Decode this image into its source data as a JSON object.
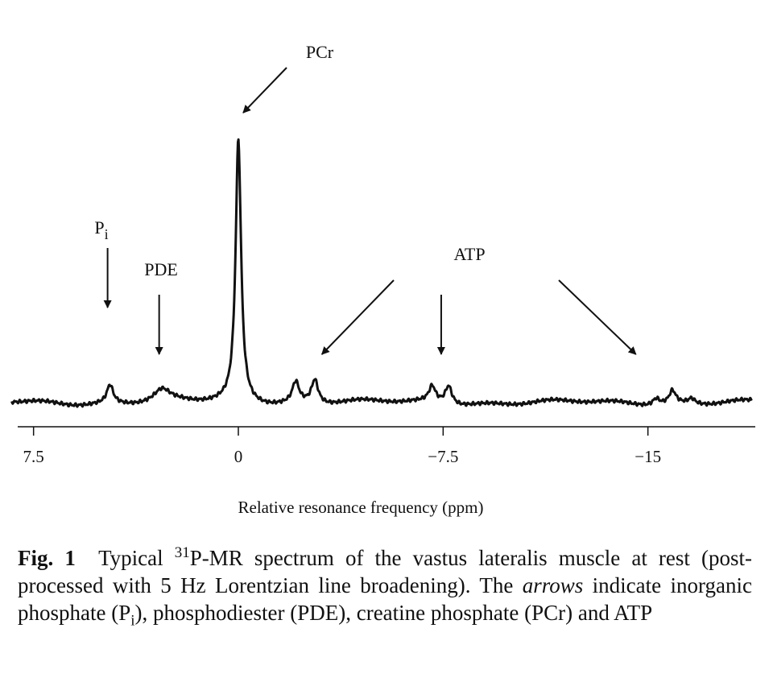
{
  "chart_data": {
    "type": "line",
    "xlabel": "Relative resonance frequency (ppm)",
    "x_axis_reversed": true,
    "xlim": [
      8.3,
      -18.8
    ],
    "ticks": [
      {
        "value": 7.5,
        "label": "7.5"
      },
      {
        "value": 0,
        "label": "0"
      },
      {
        "value": -7.5,
        "label": "−7.5"
      },
      {
        "value": -15,
        "label": "−15"
      }
    ],
    "grid": false,
    "peaks": [
      {
        "name": "Pi",
        "ppm": 4.7,
        "relative_height": 0.07
      },
      {
        "name": "PDE",
        "ppm": 2.8,
        "relative_height": 0.045
      },
      {
        "name": "PCr",
        "ppm": 0.0,
        "relative_height": 1.0
      },
      {
        "name": "ATP",
        "ppm": -2.1,
        "relative_height": 0.08
      },
      {
        "name": "ATP",
        "ppm": -2.8,
        "relative_height": 0.09
      },
      {
        "name": "ATP",
        "ppm": -7.1,
        "relative_height": 0.06
      },
      {
        "name": "ATP",
        "ppm": -7.7,
        "relative_height": 0.07
      },
      {
        "name": "ATP",
        "ppm": -15.3,
        "relative_height": 0.025
      },
      {
        "name": "ATP",
        "ppm": -15.9,
        "relative_height": 0.05
      },
      {
        "name": "ATP",
        "ppm": -16.6,
        "relative_height": 0.02
      }
    ],
    "annotations": [
      {
        "label": "PCr",
        "points_to_ppm": 0.0
      },
      {
        "label": "P",
        "subscript": "i",
        "points_to_ppm": 4.7
      },
      {
        "label": "PDE",
        "points_to_ppm": 2.9
      },
      {
        "label": "ATP",
        "points_to_ppm": [
          -3.0,
          -7.4,
          -14.5
        ]
      }
    ]
  },
  "caption": {
    "fig_label": "Fig. 1",
    "part1": "Typical ",
    "superscript": "31",
    "part2": "P-MR spectrum of the vastus lateralis muscle at rest (post-processed with 5 Hz Lorentzian line broadening). The ",
    "italic_word": "arrows",
    "part3": " indicate inorganic phosphate (P",
    "sub_i": "i",
    "part4": "), phosphodiester (PDE), creatine phosphate (PCr) and ATP"
  }
}
